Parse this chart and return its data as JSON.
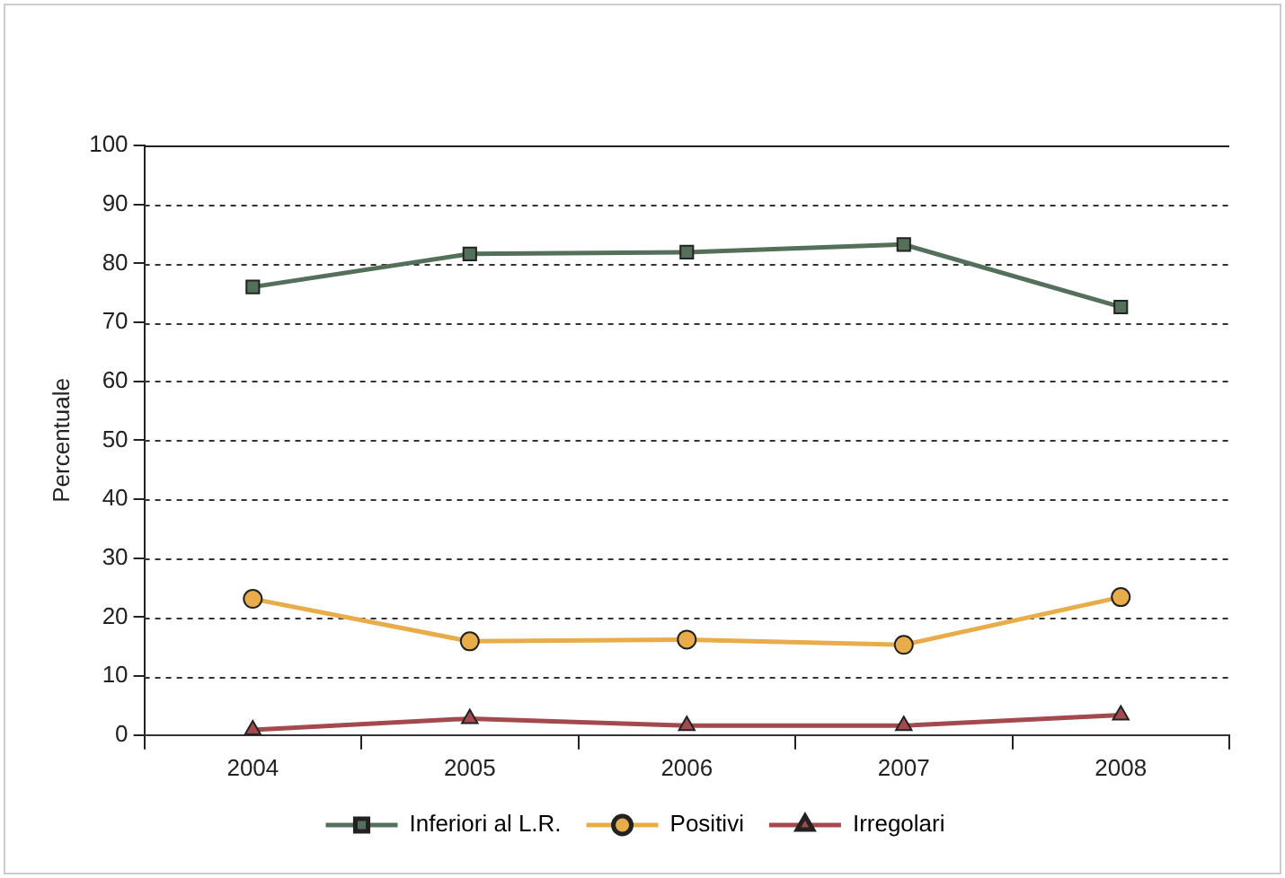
{
  "chart_data": {
    "type": "line",
    "ylabel": "Percentuale",
    "categories": [
      "2004",
      "2005",
      "2006",
      "2007",
      "2008"
    ],
    "series": [
      {
        "name": "Inferiori al L.R.",
        "color": "#55705a",
        "marker": "square",
        "values": [
          76.0,
          81.6,
          81.9,
          83.2,
          72.6
        ]
      },
      {
        "name": "Positivi",
        "color": "#e8ad4a",
        "marker": "circle",
        "values": [
          23.1,
          15.9,
          16.2,
          15.3,
          23.4
        ]
      },
      {
        "name": "Irregolari",
        "color": "#a34a4f",
        "marker": "triangle",
        "values": [
          0.9,
          2.8,
          1.6,
          1.6,
          3.4
        ]
      }
    ],
    "ylim": [
      0,
      100
    ],
    "yticks": [
      0,
      10,
      20,
      30,
      40,
      50,
      60,
      70,
      80,
      90,
      100
    ],
    "grid": "y",
    "legend": "bottom",
    "line_style": "solid"
  }
}
